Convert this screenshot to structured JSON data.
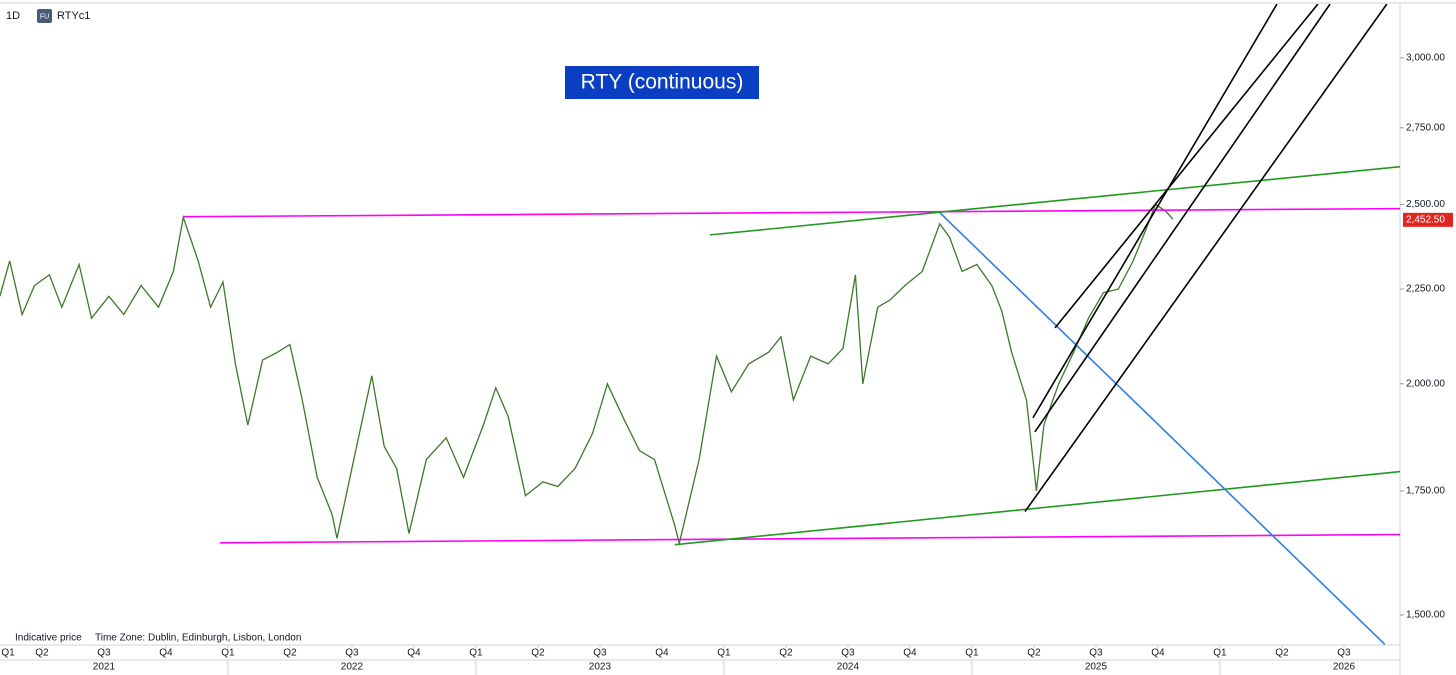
{
  "chart_data": {
    "type": "line",
    "interval": "1D",
    "exchange_badge": "FU",
    "symbol": "RTYc1",
    "title": "RTY (continuous)",
    "footnote": "Indicative price",
    "timezone": "Time Zone: Dublin, Edinburgh, Lisbon, London",
    "log_scale": true,
    "grid": false,
    "xlim": [
      2021.081,
      2026.726
    ],
    "ylim": [
      1445,
      3208
    ],
    "yticks": [
      {
        "value": 1500,
        "label": "1,500.00"
      },
      {
        "value": 1750,
        "label": "1,750.00"
      },
      {
        "value": 2000,
        "label": "2,000.00"
      },
      {
        "value": 2250,
        "label": "2,250.00"
      },
      {
        "value": 2500,
        "label": "2,500.00"
      },
      {
        "value": 2750,
        "label": "2,750.00"
      },
      {
        "value": 3000,
        "label": "3,000.00"
      }
    ],
    "xticks": [
      {
        "value": 2021.0,
        "label": "Q1"
      },
      {
        "value": 2021.25,
        "label": "Q2"
      },
      {
        "value": 2021.5,
        "label": "Q3"
      },
      {
        "value": 2021.75,
        "label": "Q4"
      },
      {
        "value": 2022.0,
        "label": "Q1"
      },
      {
        "value": 2022.25,
        "label": "Q2"
      },
      {
        "value": 2022.5,
        "label": "Q3"
      },
      {
        "value": 2022.75,
        "label": "Q4"
      },
      {
        "value": 2023.0,
        "label": "Q1"
      },
      {
        "value": 2023.25,
        "label": "Q2"
      },
      {
        "value": 2023.5,
        "label": "Q3"
      },
      {
        "value": 2023.75,
        "label": "Q4"
      },
      {
        "value": 2024.0,
        "label": "Q1"
      },
      {
        "value": 2024.25,
        "label": "Q2"
      },
      {
        "value": 2024.5,
        "label": "Q3"
      },
      {
        "value": 2024.75,
        "label": "Q4"
      },
      {
        "value": 2025.0,
        "label": "Q1"
      },
      {
        "value": 2025.25,
        "label": "Q2"
      },
      {
        "value": 2025.5,
        "label": "Q3"
      },
      {
        "value": 2025.75,
        "label": "Q4"
      },
      {
        "value": 2026.0,
        "label": "Q1"
      },
      {
        "value": 2026.25,
        "label": "Q2"
      },
      {
        "value": 2026.5,
        "label": "Q3"
      }
    ],
    "year_ticks": [
      2021,
      2022,
      2023,
      2024,
      2025,
      2026
    ],
    "last_price": {
      "value": 2452.5,
      "label": "2,452.50"
    },
    "series": [
      {
        "name": "RTYc1",
        "color": "#3a7a2a",
        "x": [
          2021.08,
          2021.12,
          2021.17,
          2021.22,
          2021.28,
          2021.33,
          2021.4,
          2021.45,
          2021.52,
          2021.58,
          2021.65,
          2021.72,
          2021.78,
          2021.82,
          2021.88,
          2021.93,
          2021.98,
          2022.03,
          2022.08,
          2022.14,
          2022.2,
          2022.25,
          2022.3,
          2022.36,
          2022.42,
          2022.44,
          2022.5,
          2022.58,
          2022.63,
          2022.68,
          2022.73,
          2022.8,
          2022.88,
          2022.95,
          2023.03,
          2023.08,
          2023.13,
          2023.2,
          2023.27,
          2023.33,
          2023.4,
          2023.47,
          2023.53,
          2023.6,
          2023.66,
          2023.72,
          2023.8,
          2023.82,
          2023.9,
          2023.97,
          2024.03,
          2024.1,
          2024.18,
          2024.23,
          2024.28,
          2024.35,
          2024.42,
          2024.48,
          2024.53,
          2024.56,
          2024.62,
          2024.67,
          2024.73,
          2024.8,
          2024.87,
          2024.91,
          2024.96,
          2025.02,
          2025.08,
          2025.12,
          2025.16,
          2025.22,
          2025.26,
          2025.29,
          2025.35,
          2025.41,
          2025.47,
          2025.53,
          2025.59,
          2025.65,
          2025.7,
          2025.74,
          2025.78,
          2025.81
        ],
        "values": [
          2230,
          2330,
          2180,
          2260,
          2290,
          2200,
          2320,
          2170,
          2230,
          2180,
          2260,
          2200,
          2300,
          2460,
          2330,
          2200,
          2270,
          2050,
          1900,
          2060,
          2080,
          2100,
          1960,
          1780,
          1700,
          1650,
          1800,
          2020,
          1850,
          1800,
          1660,
          1820,
          1870,
          1780,
          1900,
          1990,
          1920,
          1740,
          1770,
          1760,
          1800,
          1880,
          2000,
          1910,
          1840,
          1820,
          1680,
          1640,
          1820,
          2070,
          1980,
          2050,
          2080,
          2120,
          1960,
          2070,
          2050,
          2090,
          2290,
          2000,
          2200,
          2220,
          2260,
          2300,
          2440,
          2400,
          2300,
          2320,
          2260,
          2190,
          2080,
          1960,
          1750,
          1900,
          2000,
          2080,
          2170,
          2240,
          2250,
          2330,
          2420,
          2500,
          2480,
          2455
        ]
      }
    ],
    "annotations": [
      {
        "color": "#ff00ff",
        "points": [
          [
            2021.819,
            2462
          ],
          [
            2026.726,
            2487
          ]
        ]
      },
      {
        "color": "#ff00ff",
        "points": [
          [
            2021.968,
            1641
          ],
          [
            2026.726,
            1658
          ]
        ]
      },
      {
        "color": "#1f9a1f",
        "points": [
          [
            2023.944,
            2407
          ],
          [
            2026.726,
            2620
          ]
        ]
      },
      {
        "color": "#1f9a1f",
        "points": [
          [
            2023.802,
            1637
          ],
          [
            2026.726,
            1793
          ]
        ]
      },
      {
        "color": "#2f7fe0",
        "points": [
          [
            2024.871,
            2474
          ],
          [
            2026.665,
            1446
          ]
        ]
      },
      {
        "color": "#000000",
        "points": [
          [
            2025.246,
            1917
          ],
          [
            2026.23,
            3208
          ]
        ]
      },
      {
        "color": "#000000",
        "points": [
          [
            2025.335,
            2144
          ],
          [
            2026.395,
            3208
          ]
        ]
      },
      {
        "color": "#000000",
        "points": [
          [
            2025.254,
            1884
          ],
          [
            2026.444,
            3208
          ]
        ]
      },
      {
        "color": "#000000",
        "points": [
          [
            2025.214,
            1706
          ],
          [
            2026.673,
            3208
          ]
        ]
      }
    ]
  }
}
